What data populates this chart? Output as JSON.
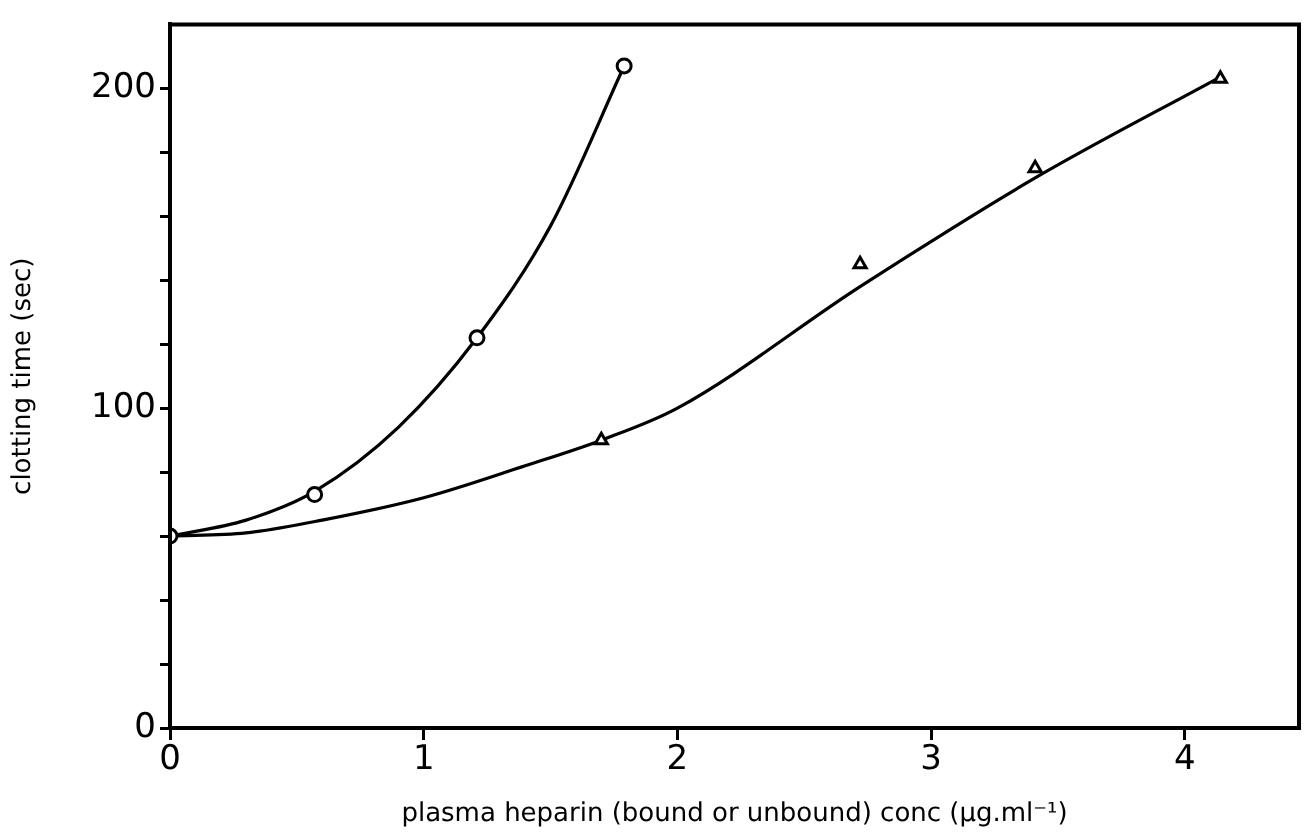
{
  "chart_data": {
    "type": "scatter",
    "xlabel": "plasma heparin (bound or unbound) conc (μg.ml⁻¹)",
    "ylabel": "clotting time (sec)",
    "xlim": [
      0,
      4.45
    ],
    "xticks": [
      0,
      1,
      2,
      3,
      4
    ],
    "ylim": [
      0,
      220
    ],
    "yticks": [
      0,
      {
        "value": 20,
        "label": null
      },
      {
        "value": 40,
        "label": null
      },
      {
        "value": 60,
        "label": null
      },
      {
        "value": 80,
        "label": null
      },
      100,
      {
        "value": 120,
        "label": null
      },
      {
        "value": 140,
        "label": null
      },
      {
        "value": 160,
        "label": null
      },
      {
        "value": 180,
        "label": null
      },
      200
    ],
    "grid": false,
    "legend": false,
    "series": [
      {
        "type": "scatter",
        "marker": "circle",
        "color": "#000000",
        "x": [
          0,
          0.57,
          1.21,
          1.79
        ],
        "values": [
          60,
          73,
          122,
          207
        ]
      },
      {
        "type": "scatter",
        "marker": "triangle",
        "color": "#000000",
        "x": [
          1.7,
          2.72,
          3.41,
          4.14
        ],
        "values": [
          90,
          145,
          175,
          203
        ]
      },
      {
        "type": "line",
        "marker": "none",
        "color": "#000000",
        "x": [
          0,
          0.3,
          0.57,
          0.9,
          1.21,
          1.5,
          1.79
        ],
        "values": [
          60,
          65,
          74,
          94,
          122,
          157,
          207
        ]
      },
      {
        "type": "line",
        "marker": "none",
        "color": "#000000",
        "x": [
          0,
          0.3,
          0.6,
          1,
          1.4,
          1.7,
          2,
          2.72,
          3.41,
          4.15
        ],
        "values": [
          60,
          61,
          65,
          72,
          82,
          90,
          100,
          138,
          172,
          204
        ]
      }
    ]
  }
}
